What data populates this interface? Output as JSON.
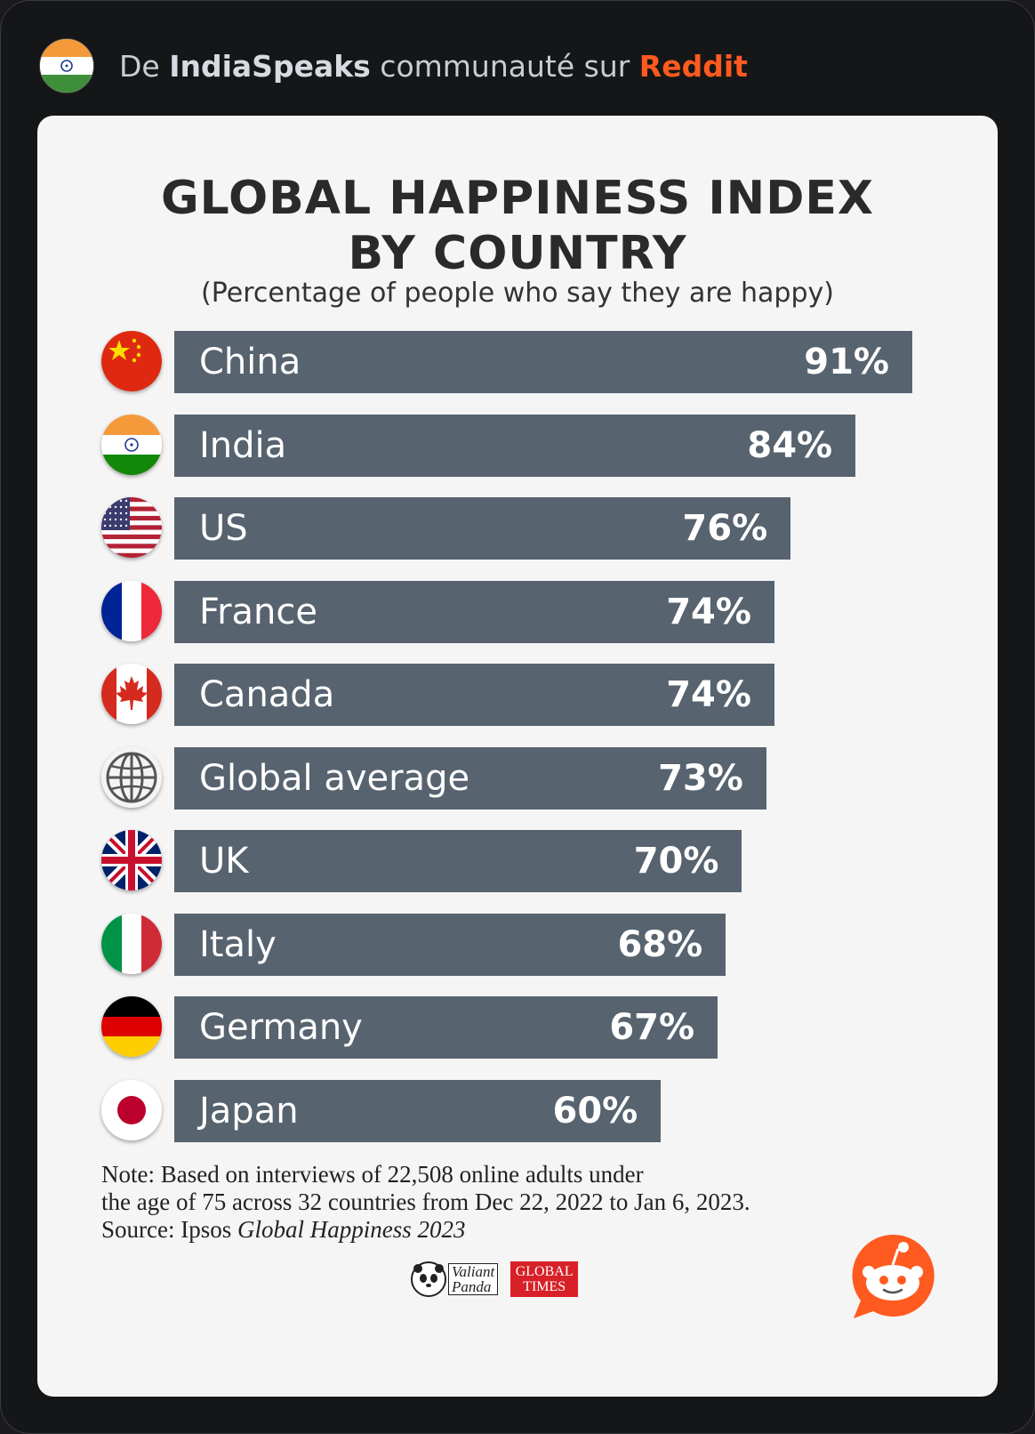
{
  "header": {
    "prefix": "De ",
    "community": "IndiaSpeaks",
    "middle": " communauté sur ",
    "platform": "Reddit",
    "avatar_icon": "india-flag-icon"
  },
  "chart_data": {
    "type": "bar",
    "orientation": "horizontal",
    "title_line1": "GLOBAL HAPPINESS INDEX",
    "title_line2": "BY COUNTRY",
    "subtitle": "(Percentage of people who say they are happy)",
    "categories": [
      "China",
      "India",
      "US",
      "France",
      "Canada",
      "Global average",
      "UK",
      "Italy",
      "Germany",
      "Japan"
    ],
    "values": [
      91,
      84,
      76,
      74,
      74,
      73,
      70,
      68,
      67,
      60
    ],
    "value_labels": [
      "91%",
      "84%",
      "76%",
      "74%",
      "74%",
      "73%",
      "70%",
      "68%",
      "67%",
      "60%"
    ],
    "flag_icons": [
      "china-flag-icon",
      "india-flag-icon",
      "us-flag-icon",
      "france-flag-icon",
      "canada-flag-icon",
      "globe-icon",
      "uk-flag-icon",
      "italy-flag-icon",
      "germany-flag-icon",
      "japan-flag-icon"
    ],
    "bar_color": "#57636f",
    "grid": false
  },
  "note": {
    "line1": "Note: Based on interviews of 22,508 online adults under",
    "line2": "the age of 75 across 32 countries from Dec 22, 2022 to Jan 6, 2023.",
    "source_prefix": "Source: Ipsos ",
    "source_title": "Global Happiness 2023"
  },
  "logos": {
    "panda_line1": "Valiant",
    "panda_line2": "Panda",
    "gt_line1": "GLOBAL",
    "gt_line2": "TIMES"
  },
  "colors": {
    "reddit_orange": "#ff5a1f",
    "background": "#151617",
    "card": "#f5f5f5"
  }
}
